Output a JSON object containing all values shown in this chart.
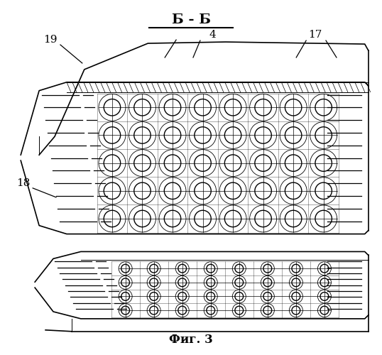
{
  "title": "Б - Б",
  "fig_label": "Фиг. 3",
  "background_color": "#ffffff",
  "line_color": "#000000",
  "lw_main": 1.2,
  "lw_thin": 0.7
}
